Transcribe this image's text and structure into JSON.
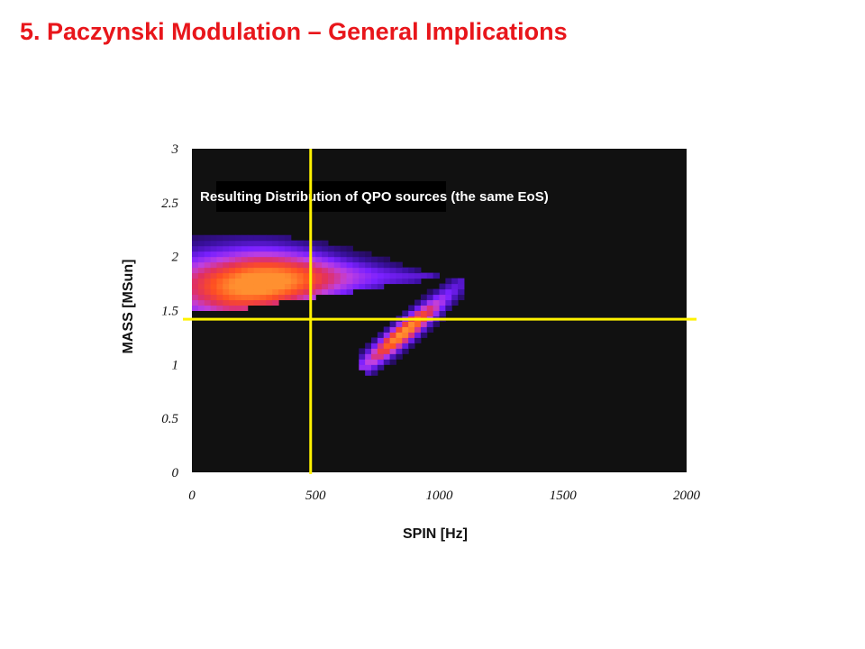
{
  "slide": {
    "title": "5. Paczynski Modulation – General Implications"
  },
  "chart_data": {
    "type": "heatmap",
    "title": "",
    "annotation": "Resulting Distribution of QPO sources (the same EoS)",
    "xlabel": "SPIN [Hz]",
    "ylabel": "MASS [MSun]",
    "xlim": [
      0,
      2000
    ],
    "ylim": [
      0,
      3
    ],
    "xticks": [
      "0",
      "500",
      "1000",
      "1500",
      "2000"
    ],
    "yticks": [
      "0",
      "0.5",
      "1",
      "1.5",
      "2",
      "2.5",
      "3"
    ],
    "grid": false,
    "background_color": "#111111",
    "reference_lines": {
      "vertical_x": 480,
      "horizontal_y": 1.42,
      "color": "#fff200"
    },
    "colormap": [
      "#1a0a3a",
      "#3a10a0",
      "#7a20ff",
      "#c040e0",
      "#e03060",
      "#ff5020",
      "#ff9030"
    ],
    "intensity_scale": [
      0,
      1
    ],
    "cell_width": 25,
    "cell_height": 0.05,
    "distributions": [
      {
        "name": "",
        "x_min": 0,
        "x_max": 1050,
        "y_min": 1.5,
        "y_max": 2.2,
        "peak_x": 280,
        "peak_y": 1.73
      },
      {
        "name": "",
        "x_min": 680,
        "x_max": 1110,
        "y_min": 0.9,
        "y_max": 1.82,
        "peak_x": 830,
        "peak_y": 1.35
      }
    ]
  }
}
